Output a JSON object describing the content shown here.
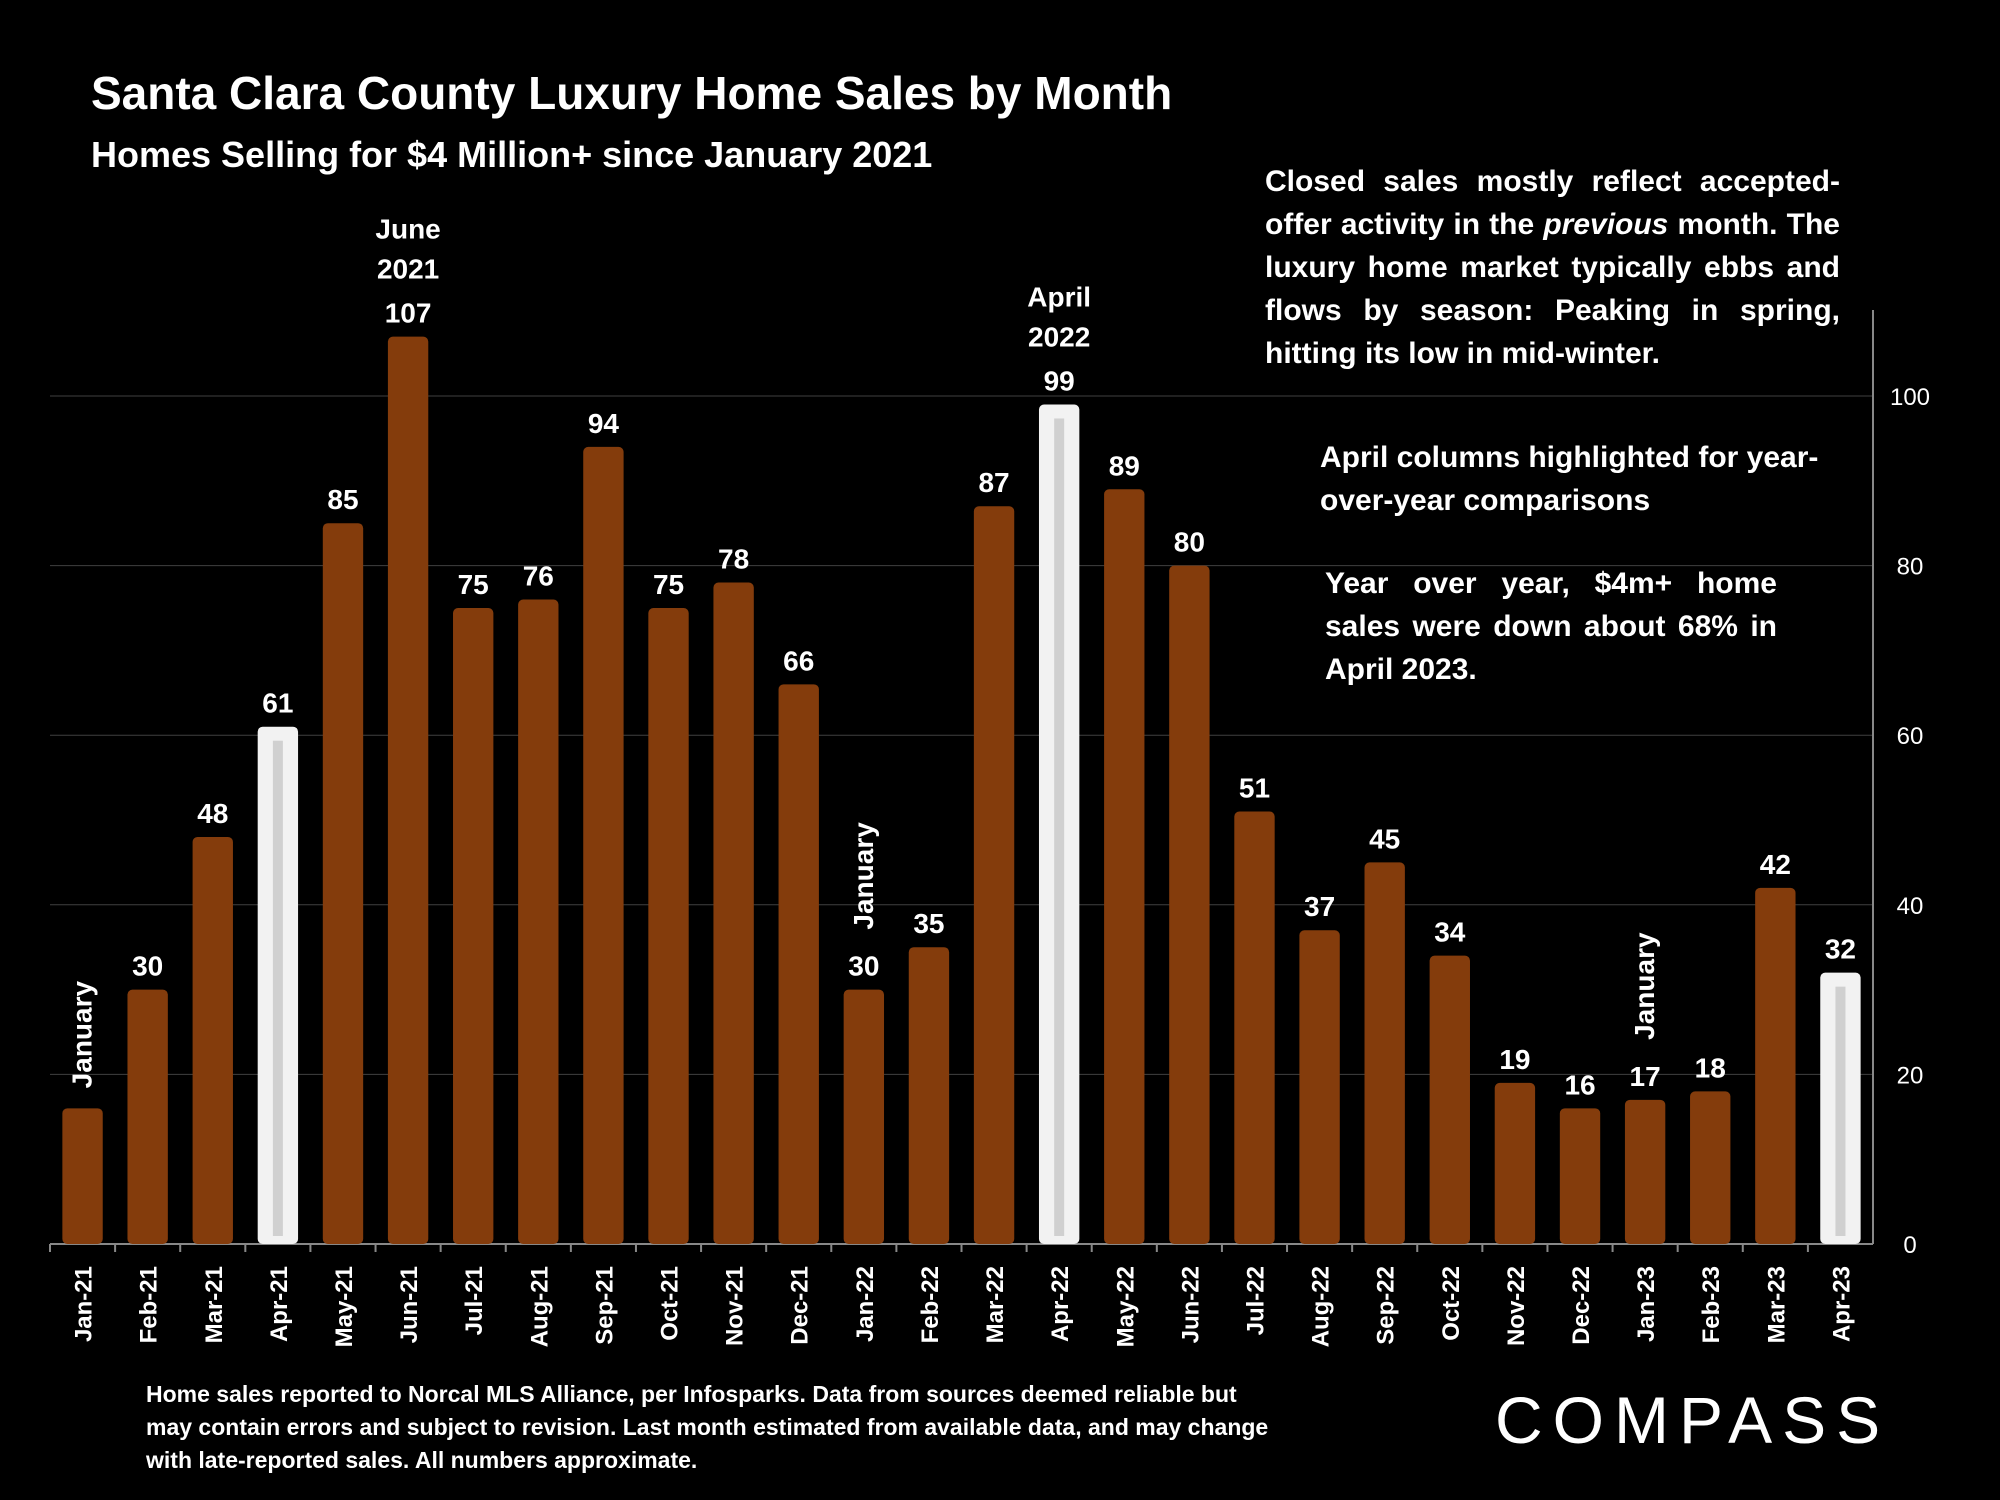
{
  "title": "Santa Clara County Luxury Home Sales by Month",
  "subtitle": "Homes Selling for $4 Million+ since January 2021",
  "notes": {
    "season_parts": [
      "Closed sales mostly reflect accepted-offer activity in the ",
      "previous",
      " month. The luxury home market typically ebbs and flows by season: Peaking in spring, hitting its low in mid-winter."
    ],
    "april": "April columns highlighted for year-over-year comparisons",
    "yoy": "Year over year, $4m+ home sales were down  about 68% in April 2023."
  },
  "footnote": "Home sales reported to Norcal MLS Alliance, per Infosparks. Data from sources deemed reliable but may contain errors and subject to revision.  Last month estimated from available data, and may change with late-reported sales. All numbers approximate.",
  "logo": "COMPASS",
  "colors": {
    "bar": "#843c0c",
    "highlight": "#f2f2f2",
    "highlight_stripe": "#d0d0d0",
    "background": "#000000",
    "grid": "#404040",
    "text": "#ffffff"
  },
  "chart_data": {
    "type": "bar",
    "categories": [
      "Jan-21",
      "Feb-21",
      "Mar-21",
      "Apr-21",
      "May-21",
      "Jun-21",
      "Jul-21",
      "Aug-21",
      "Sep-21",
      "Oct-21",
      "Nov-21",
      "Dec-21",
      "Jan-22",
      "Feb-22",
      "Mar-22",
      "Apr-22",
      "May-22",
      "Jun-22",
      "Jul-22",
      "Aug-22",
      "Sep-22",
      "Oct-22",
      "Nov-22",
      "Dec-22",
      "Jan-23",
      "Feb-23",
      "Mar-23",
      "Apr-23"
    ],
    "values": [
      16,
      30,
      48,
      61,
      85,
      107,
      75,
      76,
      94,
      75,
      78,
      66,
      30,
      35,
      87,
      99,
      89,
      80,
      51,
      37,
      45,
      34,
      19,
      16,
      17,
      18,
      42,
      32
    ],
    "value_labels": [
      "",
      "30",
      "48",
      "61",
      "85",
      "107",
      "75",
      "76",
      "94",
      "75",
      "78",
      "66",
      "30",
      "35",
      "87",
      "99",
      "89",
      "80",
      "51",
      "37",
      "45",
      "34",
      "19",
      "16",
      "17",
      "18",
      "42",
      "32"
    ],
    "highlighted": [
      "Apr-21",
      "Apr-22",
      "Apr-23"
    ],
    "y_axis": {
      "side": "right",
      "ylim": [
        0,
        110
      ],
      "ticks": [
        0,
        20,
        40,
        60,
        80,
        100
      ]
    },
    "grid": true,
    "annotations": [
      {
        "category": "Jan-21",
        "text": "January",
        "rotated": true
      },
      {
        "category": "Jan-22",
        "text": "January",
        "rotated": true
      },
      {
        "category": "Jan-23",
        "text": "January",
        "rotated": true
      },
      {
        "category": "Jun-21",
        "text": "June 2021",
        "lines": [
          "June",
          "2021"
        ]
      },
      {
        "category": "Apr-22",
        "text": "April 2022",
        "lines": [
          "April",
          "2022"
        ]
      }
    ]
  }
}
